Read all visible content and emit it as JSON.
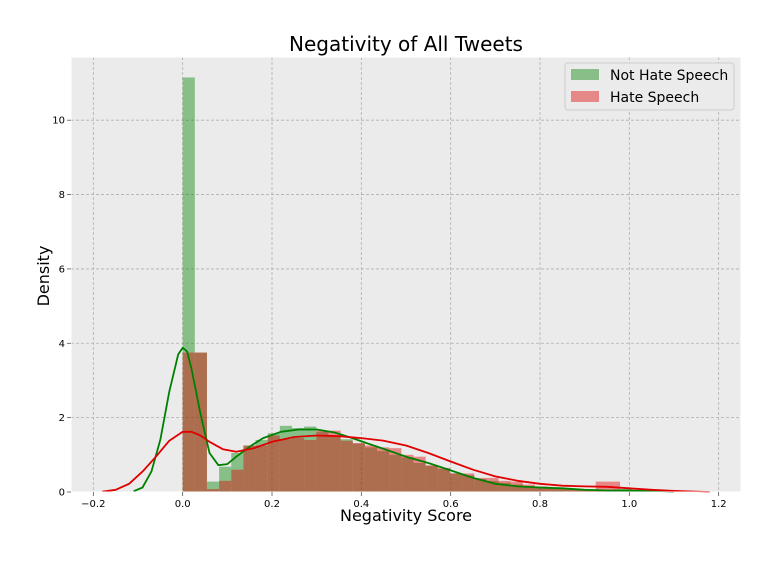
{
  "chart_data": {
    "type": "histogram+kde",
    "title": "Negativity of All Tweets",
    "xlabel": "Negativity Score",
    "ylabel": "Density",
    "xlim": [
      -0.25,
      1.25
    ],
    "ylim": [
      0,
      11.7
    ],
    "xticks": [
      -0.2,
      0.0,
      0.2,
      0.4,
      0.6,
      0.8,
      1.0,
      1.2
    ],
    "xtick_labels": [
      "−0.2",
      "0.0",
      "0.2",
      "0.4",
      "0.6",
      "0.8",
      "1.0",
      "1.2"
    ],
    "yticks": [
      0,
      2,
      4,
      6,
      8,
      10
    ],
    "ytick_labels": [
      "0",
      "2",
      "4",
      "6",
      "8",
      "10"
    ],
    "grid": true,
    "legend_position": "top-right",
    "bin_width": 0.0272,
    "series": [
      {
        "name": "Not Hate Speech",
        "color": "#008000",
        "bins_start": 0.0,
        "hist_values": [
          11.15,
          3.75,
          0.28,
          0.68,
          1.05,
          1.25,
          1.4,
          1.58,
          1.78,
          1.72,
          1.76,
          1.62,
          1.5,
          1.42,
          1.3,
          1.2,
          1.1,
          1.0,
          0.93,
          0.78,
          0.7,
          0.62,
          0.5,
          0.45,
          0.35,
          0.3,
          0.25,
          0.2,
          0.15,
          0.12,
          0.1,
          0.08,
          0.06,
          0.05,
          0.04,
          0.03,
          0.08
        ],
        "kde": {
          "x": [
            -0.11,
            -0.09,
            -0.07,
            -0.05,
            -0.03,
            -0.01,
            0.0,
            0.01,
            0.02,
            0.04,
            0.06,
            0.08,
            0.1,
            0.12,
            0.15,
            0.18,
            0.22,
            0.26,
            0.3,
            0.34,
            0.38,
            0.42,
            0.46,
            0.5,
            0.55,
            0.6,
            0.65,
            0.7,
            0.75,
            0.8,
            0.85,
            0.9,
            0.95,
            1.0,
            1.05,
            1.1
          ],
          "y": [
            0.02,
            0.12,
            0.55,
            1.4,
            2.7,
            3.7,
            3.88,
            3.78,
            3.3,
            2.1,
            1.05,
            0.72,
            0.75,
            0.95,
            1.22,
            1.45,
            1.62,
            1.68,
            1.68,
            1.6,
            1.45,
            1.28,
            1.12,
            0.95,
            0.78,
            0.58,
            0.38,
            0.22,
            0.15,
            0.12,
            0.1,
            0.06,
            0.04,
            0.04,
            0.02,
            0.0
          ]
        }
      },
      {
        "name": "Hate Speech",
        "color": "#e00000",
        "bins_start": 0.0,
        "hist_values": [
          3.75,
          3.75,
          0.08,
          0.3,
          0.6,
          1.25,
          1.25,
          1.52,
          1.42,
          1.45,
          1.4,
          1.65,
          1.65,
          1.38,
          1.32,
          1.25,
          1.2,
          1.18,
          1.0,
          0.95,
          0.72,
          0.65,
          0.5,
          0.5,
          0.38,
          0.38,
          0.3,
          0.28,
          0.2,
          0.15,
          0.12,
          0.1,
          0.08,
          0.06,
          0.28,
          0.28,
          0.05
        ],
        "kde": {
          "x": [
            -0.18,
            -0.15,
            -0.12,
            -0.09,
            -0.06,
            -0.03,
            0.0,
            0.02,
            0.04,
            0.06,
            0.09,
            0.12,
            0.16,
            0.2,
            0.25,
            0.3,
            0.35,
            0.4,
            0.45,
            0.5,
            0.55,
            0.6,
            0.65,
            0.7,
            0.75,
            0.8,
            0.85,
            0.9,
            0.95,
            1.0,
            1.05,
            1.1,
            1.15,
            1.18
          ],
          "y": [
            0.01,
            0.06,
            0.22,
            0.55,
            0.95,
            1.38,
            1.62,
            1.62,
            1.52,
            1.35,
            1.15,
            1.08,
            1.18,
            1.35,
            1.48,
            1.52,
            1.5,
            1.45,
            1.38,
            1.25,
            1.05,
            0.82,
            0.6,
            0.42,
            0.3,
            0.22,
            0.17,
            0.15,
            0.14,
            0.1,
            0.06,
            0.03,
            0.01,
            0.0
          ]
        }
      }
    ]
  }
}
